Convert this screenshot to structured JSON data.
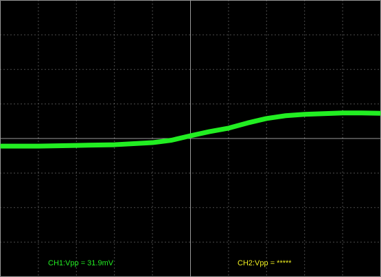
{
  "chart_data": {
    "type": "line",
    "x": [
      -5,
      -4,
      -3,
      -2,
      -1,
      -0.5,
      0,
      0.5,
      1,
      1.5,
      2,
      2.5,
      3,
      3.5,
      4,
      4.5,
      5
    ],
    "series": [
      {
        "name": "CH1",
        "color": "#22ee22",
        "values": [
          -0.22,
          -0.22,
          -0.2,
          -0.18,
          -0.12,
          -0.05,
          0.08,
          0.2,
          0.3,
          0.45,
          0.58,
          0.66,
          0.7,
          0.72,
          0.74,
          0.74,
          0.73
        ]
      }
    ],
    "xlim": [
      -5,
      5
    ],
    "ylim": [
      -4,
      4
    ],
    "xticks": [
      -5,
      -4,
      -3,
      -2,
      -1,
      0,
      1,
      2,
      3,
      4,
      5
    ],
    "yticks": [
      -4,
      -3,
      -2,
      -1,
      0,
      1,
      2,
      3,
      4
    ],
    "grid": true,
    "annotations": [
      {
        "text": "CH1:Vpp = 31.9mV",
        "color": "#22ee22"
      },
      {
        "text": "CH2:Vpp = *****",
        "color": "#f0f020"
      }
    ]
  }
}
